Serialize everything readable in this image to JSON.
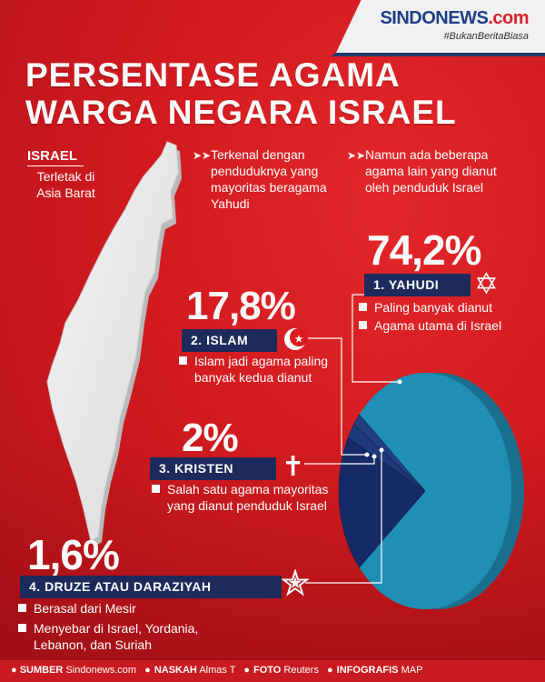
{
  "brand": {
    "name": "SINDONEWS",
    "suffix": ".com",
    "hashtag": "#BukanBeritaBiasa"
  },
  "title": {
    "line1": "PERSENTASE AGAMA",
    "line2": "WARGA NEGARA ISRAEL"
  },
  "country": {
    "name": "ISRAEL",
    "desc": "Terletak di Asia Barat"
  },
  "intro": [
    "Terkenal dengan penduduknya yang mayoritas beragama Yahudi",
    "Namun ada beberapa agama lain yang dianut oleh penduduk Israel"
  ],
  "religions": {
    "yahudi": {
      "pct": "74,2%",
      "label": "1. YAHUDI",
      "notes": [
        "Paling banyak dianut",
        "Agama utama di Israel"
      ]
    },
    "islam": {
      "pct": "17,8%",
      "label": "2. ISLAM",
      "notes": [
        "Islam jadi agama paling banyak kedua dianut"
      ]
    },
    "kristen": {
      "pct": "2%",
      "label": "3. KRISTEN",
      "notes": [
        "Salah satu agama mayoritas yang dianut penduduk Israel"
      ]
    },
    "druze": {
      "pct": "1,6%",
      "label": "4. DRUZE ATAU DARAZIYAH",
      "notes": [
        "Berasal dari Mesir",
        "Menyebar di Israel, Yordania, Lebanon, dan Suriah"
      ]
    }
  },
  "footer": {
    "sumber_label": "SUMBER",
    "sumber": "Sindonews.com",
    "naskah_label": "NASKAH",
    "naskah": "Almas T",
    "foto_label": "FOTO",
    "foto": "Reuters",
    "infografis_label": "INFOGRAFIS",
    "infografis": "MAP"
  },
  "colors": {
    "background": "#d91a1f",
    "label_bg": "#1d2a5c",
    "pie_main": "#1f8fb5",
    "pie_dark": "#152a66"
  },
  "icons": [
    "star-of-david-icon",
    "crescent-moon-icon",
    "cross-icon",
    "druze-star-icon",
    "israel-map"
  ],
  "chart_data": {
    "type": "pie",
    "categories": [
      "Yahudi",
      "Islam",
      "Kristen",
      "Druze"
    ],
    "values": [
      74.2,
      17.8,
      2.0,
      1.6
    ]
  }
}
